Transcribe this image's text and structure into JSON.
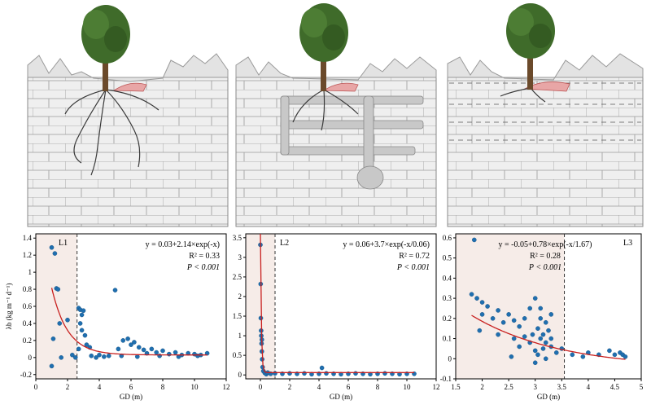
{
  "panels": [
    {
      "label": "L1",
      "equation": "y = 0.03+2.14×exp(-x)",
      "r2": "R² = 0.33",
      "p": "P < 0.001",
      "xlabel": "GD (m)",
      "ylabel": "λb (kg m⁻¹ d⁻¹)"
    },
    {
      "label": "L2",
      "equation": "y = 0.06+3.7×exp(-x/0.06)",
      "r2": "R² = 0.72",
      "p": "P < 0.001",
      "xlabel": "GD (m)",
      "ylabel": ""
    },
    {
      "label": "L3",
      "equation": "y = -0.05+0.78×exp(-x/1.67)",
      "r2": "R² = 0.28",
      "p": "P < 0.001",
      "xlabel": "GD (m)",
      "ylabel": ""
    }
  ],
  "chart_data": [
    {
      "type": "scatter",
      "label": "L1",
      "xlim": [
        0,
        12
      ],
      "ylim": [
        -0.25,
        1.45
      ],
      "xticks": [
        0,
        2,
        4,
        6,
        8,
        10,
        12
      ],
      "yticks": [
        -0.2,
        0,
        0.2,
        0.4,
        0.6,
        0.8,
        1.0,
        1.2,
        1.4
      ],
      "threshold_x": 2.6,
      "fit": {
        "a": 0.03,
        "b": 2.14,
        "c": 1.0
      },
      "points": [
        [
          1.0,
          1.29
        ],
        [
          1.2,
          1.22
        ],
        [
          1.3,
          0.81
        ],
        [
          1.4,
          0.8
        ],
        [
          1.5,
          0.4
        ],
        [
          1.1,
          0.22
        ],
        [
          1.6,
          0.0
        ],
        [
          2.0,
          0.44
        ],
        [
          2.3,
          0.03
        ],
        [
          2.7,
          0.58
        ],
        [
          2.8,
          0.56
        ],
        [
          2.9,
          0.5
        ],
        [
          3.0,
          0.55
        ],
        [
          2.8,
          0.4
        ],
        [
          2.9,
          0.32
        ],
        [
          3.1,
          0.26
        ],
        [
          2.7,
          0.1
        ],
        [
          3.2,
          0.15
        ],
        [
          3.4,
          0.12
        ],
        [
          3.5,
          0.02
        ],
        [
          3.8,
          0.0
        ],
        [
          4.0,
          0.03
        ],
        [
          4.3,
          0.01
        ],
        [
          4.6,
          0.02
        ],
        [
          5.0,
          0.79
        ],
        [
          5.2,
          0.1
        ],
        [
          5.5,
          0.2
        ],
        [
          5.8,
          0.22
        ],
        [
          6.0,
          0.15
        ],
        [
          6.2,
          0.18
        ],
        [
          6.5,
          0.12
        ],
        [
          6.8,
          0.09
        ],
        [
          7.0,
          0.05
        ],
        [
          7.3,
          0.1
        ],
        [
          7.6,
          0.06
        ],
        [
          8.0,
          0.08
        ],
        [
          8.4,
          0.04
        ],
        [
          8.8,
          0.06
        ],
        [
          9.2,
          0.03
        ],
        [
          9.6,
          0.05
        ],
        [
          10.0,
          0.04
        ],
        [
          10.4,
          0.03
        ],
        [
          10.8,
          0.05
        ],
        [
          5.4,
          0.02
        ],
        [
          6.4,
          0.01
        ],
        [
          7.8,
          0.02
        ],
        [
          9.0,
          0.01
        ],
        [
          10.2,
          0.02
        ],
        [
          1.0,
          -0.1
        ],
        [
          2.5,
          0.0
        ]
      ]
    },
    {
      "type": "scatter",
      "label": "L2",
      "xlim": [
        -1,
        12
      ],
      "ylim": [
        -0.1,
        3.6
      ],
      "xticks": [
        0,
        2,
        4,
        6,
        8,
        10,
        12
      ],
      "yticks": [
        0,
        0.5,
        1.0,
        1.5,
        2.0,
        2.5,
        3.0,
        3.5
      ],
      "threshold_x": 1.0,
      "fit": {
        "a": 0.06,
        "b": 3.7,
        "c": 0.06
      },
      "points": [
        [
          0.0,
          3.32
        ],
        [
          0.02,
          2.32
        ],
        [
          0.05,
          1.13
        ],
        [
          0.06,
          1.0
        ],
        [
          0.08,
          0.8
        ],
        [
          0.1,
          0.6
        ],
        [
          0.12,
          0.4
        ],
        [
          0.15,
          0.2
        ],
        [
          0.2,
          0.1
        ],
        [
          0.3,
          0.05
        ],
        [
          0.4,
          0.02
        ],
        [
          0.5,
          0.06
        ],
        [
          0.7,
          0.03
        ],
        [
          1.0,
          0.04
        ],
        [
          1.5,
          0.03
        ],
        [
          2.0,
          0.04
        ],
        [
          2.5,
          0.03
        ],
        [
          3.0,
          0.04
        ],
        [
          3.5,
          0.02
        ],
        [
          4.0,
          0.03
        ],
        [
          4.5,
          0.04
        ],
        [
          5.0,
          0.03
        ],
        [
          5.5,
          0.02
        ],
        [
          6.0,
          0.03
        ],
        [
          6.5,
          0.04
        ],
        [
          7.0,
          0.03
        ],
        [
          7.5,
          0.02
        ],
        [
          8.0,
          0.03
        ],
        [
          8.5,
          0.04
        ],
        [
          9.0,
          0.03
        ],
        [
          9.5,
          0.02
        ],
        [
          10.0,
          0.03
        ],
        [
          10.5,
          0.03
        ],
        [
          4.2,
          0.18
        ],
        [
          0.1,
          0.9
        ],
        [
          0.03,
          1.45
        ]
      ]
    },
    {
      "type": "scatter",
      "label": "L3",
      "xlim": [
        1.5,
        5.0
      ],
      "ylim": [
        -0.1,
        0.62
      ],
      "xticks": [
        1.5,
        2.0,
        2.5,
        3.0,
        3.5,
        4.0,
        4.5,
        5.0
      ],
      "yticks": [
        -0.1,
        0,
        0.1,
        0.2,
        0.3,
        0.4,
        0.5,
        0.6
      ],
      "threshold_x": 3.55,
      "fit": {
        "a": -0.05,
        "b": 0.78,
        "c": 1.67
      },
      "points": [
        [
          1.85,
          0.59
        ],
        [
          1.8,
          0.32
        ],
        [
          1.9,
          0.3
        ],
        [
          2.0,
          0.28
        ],
        [
          2.1,
          0.26
        ],
        [
          2.0,
          0.22
        ],
        [
          2.2,
          0.2
        ],
        [
          2.3,
          0.24
        ],
        [
          2.4,
          0.18
        ],
        [
          2.5,
          0.22
        ],
        [
          2.6,
          0.19
        ],
        [
          2.7,
          0.16
        ],
        [
          2.8,
          0.2
        ],
        [
          2.9,
          0.25
        ],
        [
          3.0,
          0.3
        ],
        [
          3.05,
          0.15
        ],
        [
          3.1,
          0.1
        ],
        [
          3.15,
          0.12
        ],
        [
          3.2,
          0.08
        ],
        [
          3.25,
          0.14
        ],
        [
          3.3,
          0.06
        ],
        [
          3.0,
          0.04
        ],
        [
          2.9,
          0.08
        ],
        [
          3.1,
          0.2
        ],
        [
          3.2,
          0.18
        ],
        [
          3.3,
          0.1
        ],
        [
          2.6,
          0.1
        ],
        [
          2.7,
          0.06
        ],
        [
          2.8,
          0.11
        ],
        [
          2.95,
          0.12
        ],
        [
          3.15,
          0.05
        ],
        [
          3.4,
          0.03
        ],
        [
          3.5,
          0.05
        ],
        [
          3.7,
          0.02
        ],
        [
          3.9,
          0.01
        ],
        [
          4.0,
          0.03
        ],
        [
          4.2,
          0.02
        ],
        [
          4.4,
          0.04
        ],
        [
          4.5,
          0.02
        ],
        [
          4.6,
          0.03
        ],
        [
          4.65,
          0.02
        ],
        [
          4.7,
          0.01
        ],
        [
          3.05,
          0.02
        ],
        [
          3.2,
          0.0
        ],
        [
          3.0,
          -0.02
        ],
        [
          2.55,
          0.01
        ],
        [
          1.95,
          0.14
        ],
        [
          2.3,
          0.12
        ],
        [
          3.1,
          0.25
        ],
        [
          3.3,
          0.22
        ]
      ]
    }
  ]
}
